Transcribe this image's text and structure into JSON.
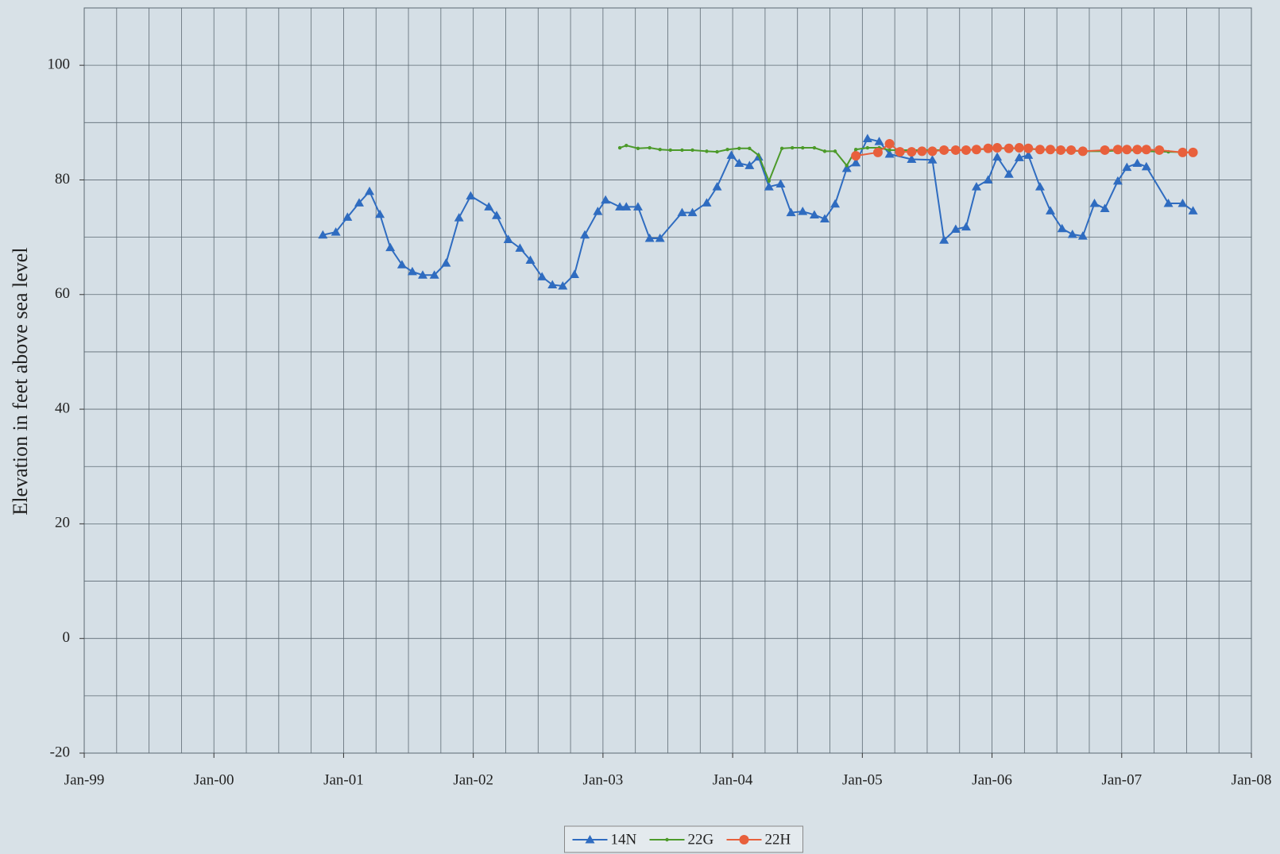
{
  "chart_data": {
    "type": "line",
    "ylabel": "Elevation in feet above sea level",
    "xlim": [
      1999,
      2008
    ],
    "xticks": [
      {
        "value": 1999,
        "label": "Jan-99"
      },
      {
        "value": 2000,
        "label": "Jan-00"
      },
      {
        "value": 2001,
        "label": "Jan-01"
      },
      {
        "value": 2002,
        "label": "Jan-02"
      },
      {
        "value": 2003,
        "label": "Jan-03"
      },
      {
        "value": 2004,
        "label": "Jan-04"
      },
      {
        "value": 2005,
        "label": "Jan-05"
      },
      {
        "value": 2006,
        "label": "Jan-06"
      },
      {
        "value": 2007,
        "label": "Jan-07"
      },
      {
        "value": 2008,
        "label": "Jan-08"
      }
    ],
    "xgrid": [
      1999,
      1999.25,
      1999.5,
      1999.75,
      2000,
      2000.25,
      2000.5,
      2000.75,
      2001,
      2001.25,
      2001.5,
      2001.75,
      2002,
      2002.25,
      2002.5,
      2002.75,
      2003,
      2003.25,
      2003.5,
      2003.75,
      2004,
      2004.25,
      2004.5,
      2004.75,
      2005,
      2005.25,
      2005.5,
      2005.75,
      2006,
      2006.25,
      2006.5,
      2006.75,
      2007,
      2007.25,
      2007.5,
      2007.75,
      2008
    ],
    "ylim": [
      -20,
      110
    ],
    "yticks": [
      -20,
      0,
      20,
      40,
      60,
      80,
      100
    ],
    "ygrid": [
      -20,
      -10,
      0,
      10,
      20,
      30,
      40,
      50,
      60,
      70,
      80,
      90,
      100,
      110
    ],
    "legend": "bottom",
    "series": [
      {
        "name": "14N",
        "color": "#2f6cc0",
        "marker": "triangle",
        "x": [
          2000.84,
          2000.94,
          2001.03,
          2001.12,
          2001.2,
          2001.28,
          2001.36,
          2001.45,
          2001.53,
          2001.61,
          2001.7,
          2001.79,
          2001.89,
          2001.98,
          2002.12,
          2002.18,
          2002.27,
          2002.36,
          2002.44,
          2002.53,
          2002.61,
          2002.69,
          2002.78,
          2002.86,
          2002.96,
          2003.02,
          2003.13,
          2003.18,
          2003.27,
          2003.36,
          2003.44,
          2003.61,
          2003.69,
          2003.8,
          2003.88,
          2003.99,
          2004.05,
          2004.13,
          2004.2,
          2004.28,
          2004.37,
          2004.45,
          2004.54,
          2004.63,
          2004.71,
          2004.79,
          2004.88,
          2004.95,
          2005.04,
          2005.13,
          2005.21,
          2005.38,
          2005.54,
          2005.63,
          2005.72,
          2005.8,
          2005.88,
          2005.97,
          2006.04,
          2006.13,
          2006.21,
          2006.28,
          2006.37,
          2006.45,
          2006.54,
          2006.62,
          2006.7,
          2006.79,
          2006.87,
          2006.97,
          2007.04,
          2007.12,
          2007.19,
          2007.36,
          2007.47,
          2007.55
        ],
        "values": [
          70.4,
          70.9,
          73.5,
          76,
          78,
          74,
          68.2,
          65.2,
          64,
          63.4,
          63.4,
          65.5,
          73.4,
          77.2,
          75.3,
          73.8,
          69.6,
          68.1,
          66,
          63.1,
          61.7,
          61.5,
          63.5,
          70.4,
          74.5,
          76.5,
          75.3,
          75.3,
          75.3,
          69.8,
          69.8,
          74.3,
          74.3,
          76,
          78.8,
          84.3,
          82.9,
          82.5,
          84,
          78.8,
          79.3,
          74.3,
          74.5,
          73.9,
          73.2,
          75.8,
          82,
          83,
          87.2,
          86.7,
          84.5,
          83.6,
          83.5,
          69.5,
          71.4,
          71.8,
          78.8,
          80,
          84,
          81,
          83.9,
          84.3,
          78.8,
          74.6,
          71.5,
          70.5,
          70.2,
          75.9,
          75,
          79.8,
          82.2,
          82.9,
          82.3,
          75.9,
          75.9,
          74.6
        ]
      },
      {
        "name": "22G",
        "color": "#4c9a2a",
        "marker": "dot",
        "x": [
          2003.13,
          2003.18,
          2003.27,
          2003.36,
          2003.44,
          2003.52,
          2003.61,
          2003.69,
          2003.8,
          2003.88,
          2003.96,
          2004.05,
          2004.13,
          2004.2,
          2004.28,
          2004.38,
          2004.46,
          2004.54,
          2004.63,
          2004.71,
          2004.79,
          2004.88,
          2004.95,
          2005.04,
          2005.13,
          2005.21,
          2005.38,
          2005.54,
          2005.72,
          2005.88,
          2006.04,
          2006.21,
          2006.37,
          2006.53,
          2006.7,
          2006.87,
          2007.04,
          2007.19,
          2007.36,
          2007.55
        ],
        "values": [
          85.6,
          86,
          85.5,
          85.6,
          85.3,
          85.2,
          85.2,
          85.2,
          85,
          84.9,
          85.3,
          85.5,
          85.5,
          84.3,
          79.8,
          85.5,
          85.6,
          85.6,
          85.6,
          85,
          85,
          82.5,
          85.3,
          85.6,
          85.6,
          85.2,
          85.2,
          85.2,
          85.2,
          85.3,
          85.5,
          85.5,
          85.3,
          85.2,
          85,
          85,
          85.2,
          85,
          84.9,
          84.8
        ]
      },
      {
        "name": "22H",
        "color": "#e8603c",
        "marker": "circle",
        "x": [
          2004.95,
          2005.12,
          2005.21,
          2005.29,
          2005.38,
          2005.46,
          2005.54,
          2005.63,
          2005.72,
          2005.8,
          2005.88,
          2005.97,
          2006.04,
          2006.13,
          2006.21,
          2006.28,
          2006.37,
          2006.45,
          2006.53,
          2006.61,
          2006.7,
          2006.87,
          2006.97,
          2007.04,
          2007.12,
          2007.19,
          2007.29,
          2007.47,
          2007.55
        ],
        "values": [
          84.2,
          84.8,
          86.3,
          84.9,
          84.9,
          85,
          85,
          85.2,
          85.2,
          85.2,
          85.3,
          85.5,
          85.6,
          85.5,
          85.6,
          85.5,
          85.3,
          85.3,
          85.2,
          85.2,
          85,
          85.2,
          85.3,
          85.3,
          85.3,
          85.3,
          85.2,
          84.8,
          84.8
        ]
      }
    ]
  }
}
